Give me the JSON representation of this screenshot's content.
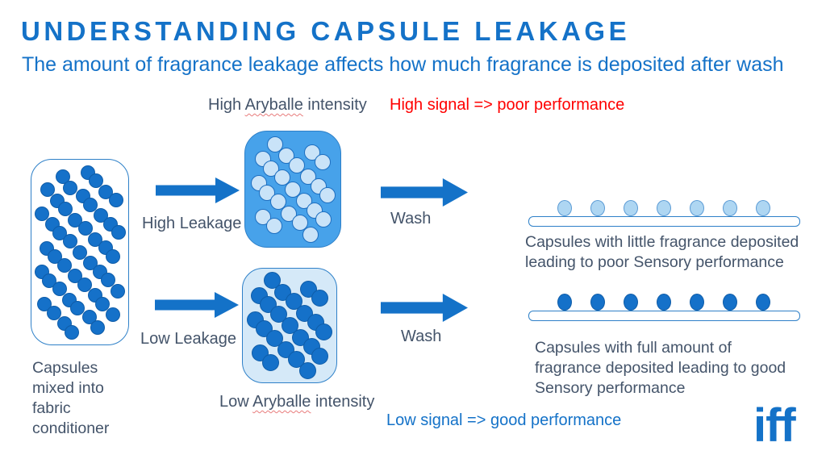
{
  "slide": {
    "title": "UNDERSTANDING CAPSULE LEAKAGE",
    "subtitle": "The amount of fragrance leakage affects how much fragrance is deposited after wash"
  },
  "labels": {
    "high_intensity": {
      "prefix": "High ",
      "word": "Aryballe",
      "suffix": " intensity"
    },
    "low_intensity": {
      "prefix": "Low ",
      "word": "Aryballe",
      "suffix": " intensity"
    },
    "high_signal": "High signal => poor performance",
    "low_signal": "Low signal => good performance",
    "high_leakage": "High Leakage",
    "low_leakage": "Low Leakage",
    "wash_top": "Wash",
    "wash_bottom": "Wash",
    "capsules_mixed": "Capsules\nmixed into\nfabric\nconditioner",
    "deposit_poor": "Capsules with little fragrance deposited\nleading to poor Sensory performance",
    "deposit_good": "Capsules with full amount of\nfragrance deposited leading to good\nSensory performance",
    "logo": "iff"
  },
  "diagram": {
    "deposited_count_poor": 7,
    "deposited_count_good": 7
  },
  "colors": {
    "blue_primary": "#1472C8",
    "slate_text": "#44546A",
    "red_text": "#FF0000",
    "box_border": "#2E80C8",
    "high_box_fill": "#47A2EA",
    "low_box_fill": "#D5E9F8",
    "capsule_dark_fill": "#1571C9",
    "capsule_dark_stroke": "#0E5CA8",
    "capsule_light_fill": "#C9E3F8",
    "capsule_light_stroke": "#1E6FC0",
    "deposit_light_fill": "#AED6F2",
    "deposit_light_stroke": "#5B9BD5",
    "bar_border": "#2E80C8"
  }
}
